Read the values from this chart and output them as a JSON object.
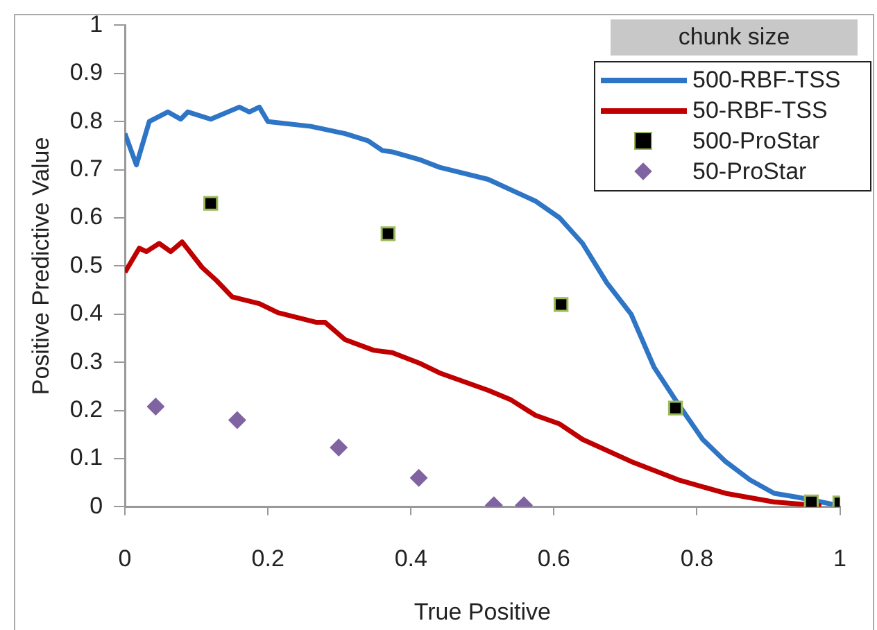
{
  "chart_data": {
    "type": "line",
    "xlabel": "True Positive",
    "ylabel": "Positive Predictive Value",
    "legend_title": "chunk size",
    "legend": "top right",
    "grid": false,
    "xlim": [
      0,
      1
    ],
    "xticks": [
      0,
      0.2,
      0.4,
      0.6,
      0.8,
      1
    ],
    "ylim": [
      0,
      1
    ],
    "yticks": [
      0,
      0.1,
      0.2,
      0.3,
      0.4,
      0.5,
      0.6,
      0.7,
      0.8,
      0.9,
      1
    ],
    "series": [
      {
        "name": "500-RBF-TSS",
        "marker": "none",
        "color": "#2e75c6",
        "x": [
          0,
          0.016,
          0.034,
          0.06,
          0.078,
          0.088,
          0.12,
          0.16,
          0.174,
          0.188,
          0.2,
          0.26,
          0.308,
          0.34,
          0.36,
          0.374,
          0.414,
          0.44,
          0.508,
          0.574,
          0.608,
          0.64,
          0.674,
          0.708,
          0.74,
          0.774,
          0.808,
          0.84,
          0.874,
          0.908,
          0.94,
          0.974,
          0.99
        ],
        "values": [
          0.775,
          0.71,
          0.8,
          0.82,
          0.805,
          0.82,
          0.805,
          0.83,
          0.82,
          0.83,
          0.8,
          0.79,
          0.775,
          0.76,
          0.74,
          0.737,
          0.72,
          0.705,
          0.68,
          0.635,
          0.6,
          0.547,
          0.465,
          0.4,
          0.29,
          0.213,
          0.14,
          0.094,
          0.056,
          0.028,
          0.02,
          0.01,
          0.005
        ]
      },
      {
        "name": "50-RBF-TSS",
        "marker": "none",
        "color": "#c00000",
        "x": [
          0,
          0.02,
          0.03,
          0.048,
          0.064,
          0.08,
          0.108,
          0.128,
          0.15,
          0.188,
          0.214,
          0.268,
          0.28,
          0.308,
          0.348,
          0.374,
          0.414,
          0.44,
          0.508,
          0.54,
          0.574,
          0.608,
          0.64,
          0.708,
          0.774,
          0.84,
          0.908,
          0.974
        ],
        "values": [
          0.487,
          0.537,
          0.53,
          0.547,
          0.53,
          0.55,
          0.497,
          0.47,
          0.436,
          0.422,
          0.403,
          0.383,
          0.383,
          0.347,
          0.325,
          0.32,
          0.297,
          0.278,
          0.242,
          0.222,
          0.19,
          0.172,
          0.14,
          0.094,
          0.056,
          0.028,
          0.01,
          0.002
        ]
      },
      {
        "name": "500-ProStar",
        "type": "scatter",
        "marker": "square",
        "color": "#000000",
        "x": [
          0.12,
          0.368,
          0.61,
          0.77,
          0.96,
          1.0
        ],
        "values": [
          0.63,
          0.567,
          0.42,
          0.205,
          0.01,
          0.008
        ]
      },
      {
        "name": "50-ProStar",
        "type": "scatter",
        "marker": "diamond",
        "color": "#8064a2",
        "x": [
          0.043,
          0.157,
          0.299,
          0.411,
          0.516,
          0.558
        ],
        "values": [
          0.208,
          0.18,
          0.123,
          0.06,
          0.003,
          0.003
        ]
      }
    ]
  }
}
